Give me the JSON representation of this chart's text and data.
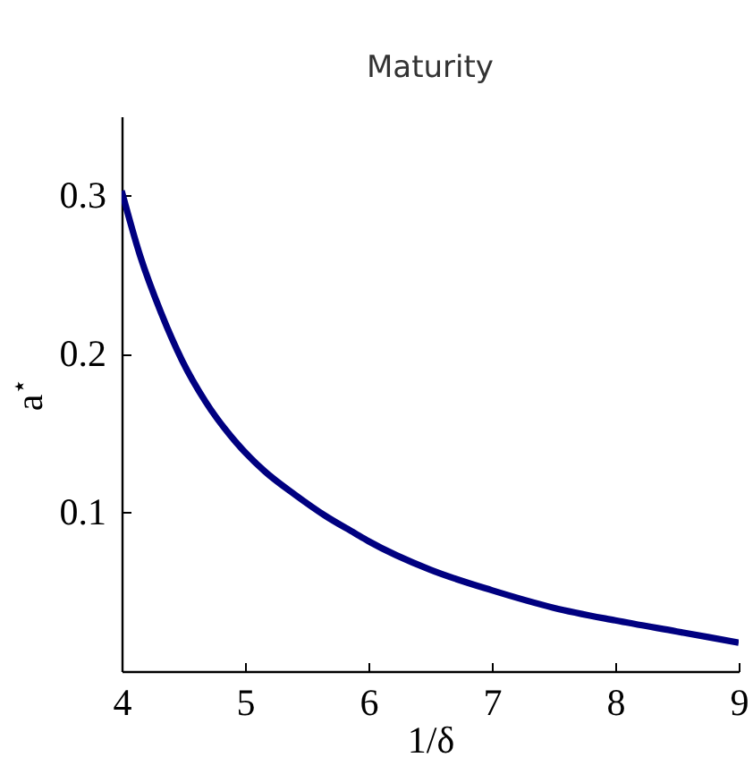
{
  "chart_data": {
    "type": "line",
    "title": "Maturity",
    "xlabel": "1/δ",
    "ylabel": "a$^{⋆}$",
    "x": [
      4,
      4.15,
      4.32,
      4.49,
      4.68,
      4.92,
      5.16,
      5.41,
      5.65,
      5.89,
      6.0,
      6.5,
      7.0,
      7.5,
      8.0,
      8.5,
      9.0
    ],
    "values": [
      0.303,
      0.262,
      0.226,
      0.196,
      0.17,
      0.145,
      0.126,
      0.111,
      0.098,
      0.087,
      0.082,
      0.064,
      0.051,
      0.04,
      0.032,
      0.025,
      0.018
    ],
    "color": "#000080",
    "xlim": [
      4,
      9
    ],
    "ylim": [
      0,
      0.35
    ],
    "xticks": [
      4,
      5,
      6,
      7,
      8,
      9
    ],
    "yticks": [
      0.1,
      0.2,
      0.3
    ],
    "grid": false
  }
}
